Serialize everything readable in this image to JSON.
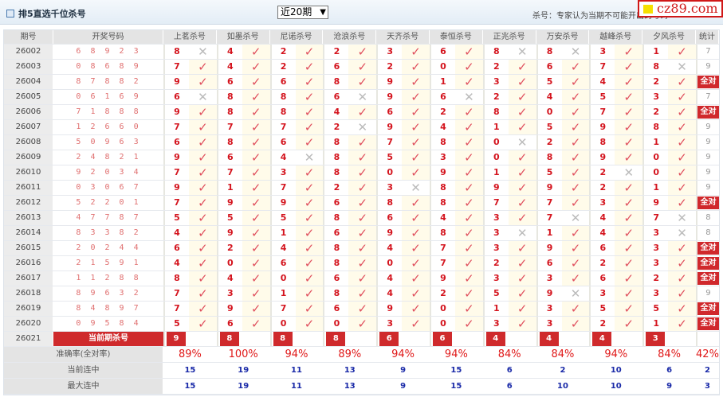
{
  "header": {
    "title": "排5直选千位杀号",
    "period_select": "近20期",
    "note": "杀号：专家认为当期不可能开出的号码",
    "logo": "cz89.com"
  },
  "columns": {
    "period": "期号",
    "draw": "开奖号码",
    "experts": [
      "上茗杀号",
      "如墨杀号",
      "尼诺杀号",
      "沧浪杀号",
      "天齐杀号",
      "泰恒杀号",
      "正兆杀号",
      "万安杀号",
      "越峰杀号",
      "夕风杀号"
    ],
    "stat": "统计"
  },
  "rows": [
    {
      "period": "26002",
      "draw": "6 8 9 2 3",
      "kills": [
        8,
        4,
        2,
        2,
        3,
        6,
        8,
        8,
        3,
        1
      ],
      "stat": "7"
    },
    {
      "period": "26003",
      "draw": "0 8 6 8 9",
      "kills": [
        7,
        4,
        2,
        6,
        2,
        0,
        2,
        6,
        7,
        8
      ],
      "stat": "9"
    },
    {
      "period": "26004",
      "draw": "8 7 8 8 2",
      "kills": [
        9,
        6,
        6,
        8,
        9,
        1,
        3,
        5,
        4,
        2
      ],
      "stat": "全对"
    },
    {
      "period": "26005",
      "draw": "0 6 1 6 9",
      "kills": [
        6,
        8,
        8,
        6,
        9,
        6,
        2,
        4,
        5,
        3
      ],
      "stat": "7"
    },
    {
      "period": "26006",
      "draw": "7 1 8 8 8",
      "kills": [
        9,
        8,
        8,
        4,
        6,
        2,
        8,
        0,
        7,
        2
      ],
      "stat": "全对"
    },
    {
      "period": "26007",
      "draw": "1 2 6 6 0",
      "kills": [
        7,
        7,
        7,
        2,
        9,
        4,
        1,
        5,
        9,
        8
      ],
      "stat": "9"
    },
    {
      "period": "26008",
      "draw": "5 0 9 6 3",
      "kills": [
        6,
        8,
        6,
        8,
        7,
        8,
        0,
        2,
        8,
        1
      ],
      "stat": "9"
    },
    {
      "period": "26009",
      "draw": "2 4 8 2 1",
      "kills": [
        9,
        6,
        4,
        8,
        5,
        3,
        0,
        8,
        9,
        0
      ],
      "stat": "9"
    },
    {
      "period": "26010",
      "draw": "9 2 0 3 4",
      "kills": [
        7,
        7,
        3,
        8,
        0,
        9,
        1,
        5,
        2,
        0
      ],
      "stat": "9"
    },
    {
      "period": "26011",
      "draw": "0 3 0 6 7",
      "kills": [
        9,
        1,
        7,
        2,
        3,
        8,
        9,
        9,
        2,
        1
      ],
      "stat": "9"
    },
    {
      "period": "26012",
      "draw": "5 2 2 0 1",
      "kills": [
        7,
        9,
        9,
        6,
        8,
        8,
        7,
        7,
        3,
        9
      ],
      "stat": "全对"
    },
    {
      "period": "26013",
      "draw": "4 7 7 8 7",
      "kills": [
        5,
        5,
        5,
        8,
        6,
        4,
        3,
        7,
        4,
        7
      ],
      "stat": "8"
    },
    {
      "period": "26014",
      "draw": "8 3 3 8 2",
      "kills": [
        4,
        9,
        1,
        6,
        9,
        8,
        3,
        1,
        4,
        3
      ],
      "stat": "8"
    },
    {
      "period": "26015",
      "draw": "2 0 2 4 4",
      "kills": [
        6,
        2,
        4,
        8,
        4,
        7,
        3,
        9,
        6,
        3
      ],
      "stat": "全对"
    },
    {
      "period": "26016",
      "draw": "2 1 5 9 1",
      "kills": [
        4,
        0,
        6,
        8,
        0,
        7,
        2,
        6,
        2,
        3
      ],
      "stat": "全对"
    },
    {
      "period": "26017",
      "draw": "1 1 2 8 8",
      "kills": [
        8,
        4,
        0,
        6,
        4,
        9,
        3,
        3,
        6,
        2
      ],
      "stat": "全对"
    },
    {
      "period": "26018",
      "draw": "8 9 6 3 2",
      "kills": [
        7,
        3,
        1,
        8,
        4,
        2,
        5,
        9,
        3,
        3
      ],
      "stat": "9"
    },
    {
      "period": "26019",
      "draw": "8 4 8 9 7",
      "kills": [
        7,
        9,
        7,
        6,
        9,
        0,
        1,
        3,
        5,
        5
      ],
      "stat": "全对"
    },
    {
      "period": "26020",
      "draw": "0 9 5 8 4",
      "kills": [
        5,
        6,
        0,
        0,
        3,
        0,
        3,
        3,
        2,
        1
      ],
      "stat": "全对"
    }
  ],
  "current": {
    "period": "26021",
    "label": "当前期杀号",
    "kills": [
      9,
      8,
      8,
      8,
      6,
      6,
      4,
      4,
      4,
      3
    ]
  },
  "summary": [
    {
      "label": "准确率(全对率)",
      "values": [
        "89%",
        "100%",
        "94%",
        "89%",
        "94%",
        "94%",
        "84%",
        "84%",
        "94%",
        "84%"
      ],
      "stat": "42%",
      "style": "pct"
    },
    {
      "label": "当前连中",
      "values": [
        "15",
        "19",
        "11",
        "13",
        "9",
        "15",
        "6",
        "2",
        "10",
        "6"
      ],
      "stat": "2",
      "style": "cnt"
    },
    {
      "label": "最大连中",
      "values": [
        "15",
        "19",
        "11",
        "13",
        "9",
        "15",
        "6",
        "10",
        "10",
        "9"
      ],
      "stat": "3",
      "style": "cnt"
    }
  ],
  "colors": {
    "accent": "#cf2a2c",
    "check": "#e0505e",
    "count": "#1a2aa8"
  },
  "icons": {
    "hit": "check-icon",
    "miss": "cross-icon"
  }
}
